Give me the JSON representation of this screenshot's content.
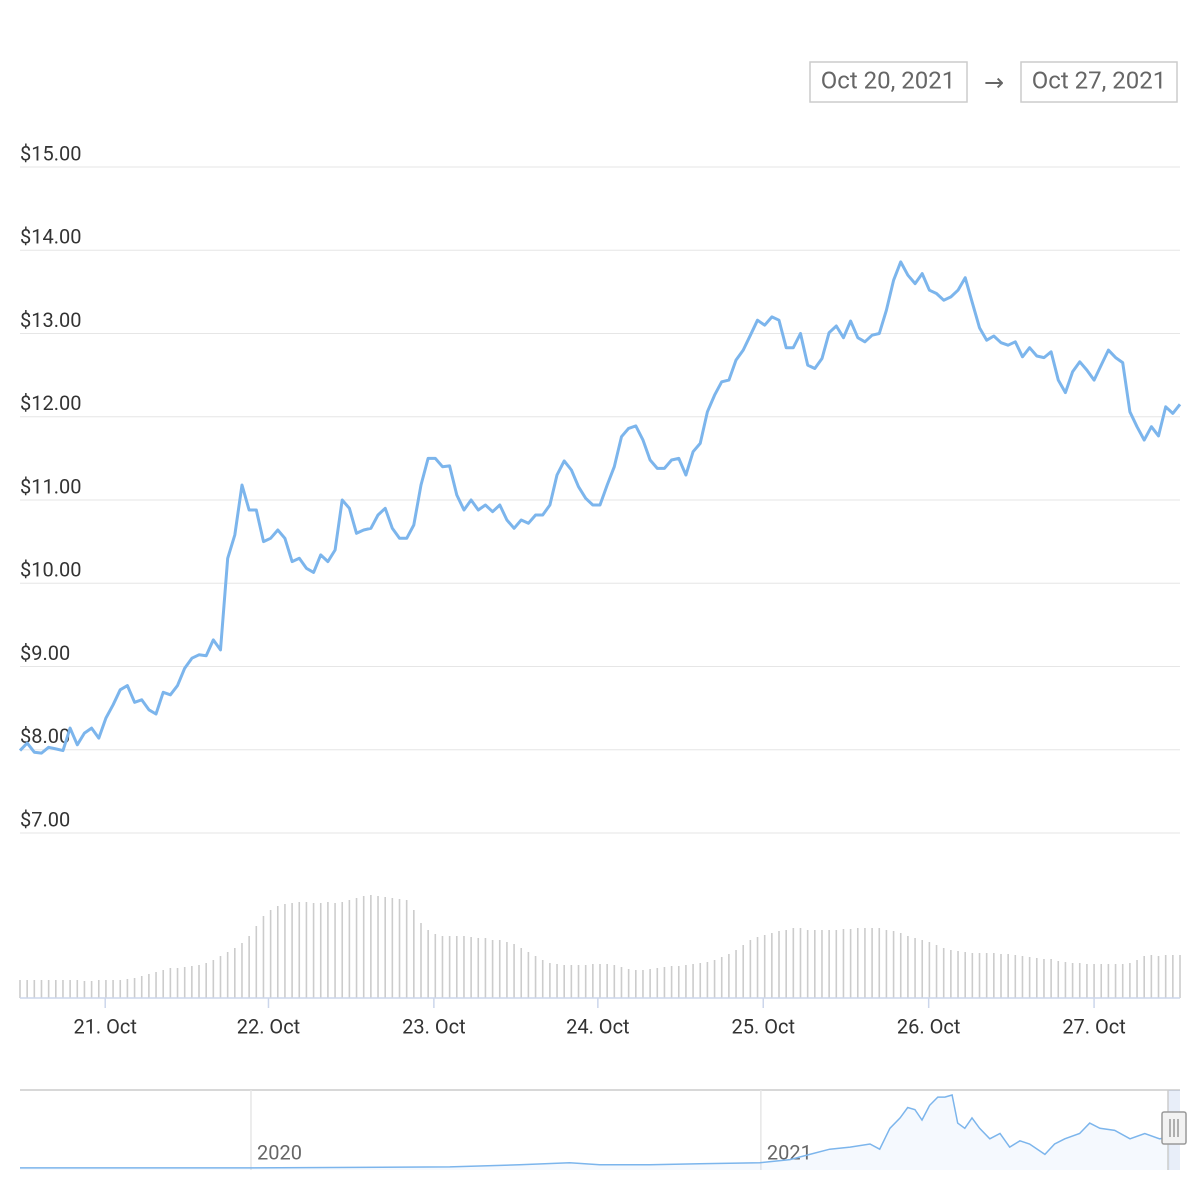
{
  "date_range": {
    "from": "Oct 20, 2021",
    "separator": "→",
    "to": "Oct 27, 2021"
  },
  "chart_data": [
    {
      "type": "line",
      "color": "#7cb5ec",
      "grid": true,
      "xlim": [
        0,
        162
      ],
      "xticks": [
        {
          "value": 11.9,
          "label": "21. Oct"
        },
        {
          "value": 34.7,
          "label": "22. Oct"
        },
        {
          "value": 57.8,
          "label": "23. Oct"
        },
        {
          "value": 80.7,
          "label": "24. Oct"
        },
        {
          "value": 103.8,
          "label": "25. Oct"
        },
        {
          "value": 126.9,
          "label": "26. Oct"
        },
        {
          "value": 150.0,
          "label": "27. Oct"
        }
      ],
      "ylim": [
        7,
        15
      ],
      "yticks": [
        {
          "value": 7,
          "label": "$7.00"
        },
        {
          "value": 8,
          "label": "$8.00"
        },
        {
          "value": 9,
          "label": "$9.00"
        },
        {
          "value": 10,
          "label": "$10.00"
        },
        {
          "value": 11,
          "label": "$11.00"
        },
        {
          "value": 12,
          "label": "$12.00"
        },
        {
          "value": 13,
          "label": "$13.00"
        },
        {
          "value": 14,
          "label": "$14.00"
        },
        {
          "value": 15,
          "label": "$15.00"
        }
      ],
      "values": [
        7.99,
        8.08,
        7.97,
        7.96,
        8.03,
        8.01,
        7.99,
        8.26,
        8.06,
        8.2,
        8.26,
        8.14,
        8.38,
        8.54,
        8.72,
        8.77,
        8.57,
        8.6,
        8.48,
        8.43,
        8.69,
        8.66,
        8.77,
        8.98,
        9.1,
        9.14,
        9.13,
        9.32,
        9.2,
        10.3,
        10.58,
        11.18,
        10.88,
        10.88,
        10.5,
        10.54,
        10.64,
        10.54,
        10.26,
        10.3,
        10.18,
        10.13,
        10.34,
        10.26,
        10.4,
        11.0,
        10.9,
        10.6,
        10.64,
        10.66,
        10.82,
        10.9,
        10.66,
        10.54,
        10.54,
        10.7,
        11.18,
        11.5,
        11.5,
        11.4,
        11.41,
        11.06,
        10.88,
        11.0,
        10.88,
        10.94,
        10.86,
        10.94,
        10.76,
        10.66,
        10.76,
        10.72,
        10.82,
        10.82,
        10.94,
        11.3,
        11.47,
        11.36,
        11.16,
        11.02,
        10.94,
        10.94,
        11.18,
        11.4,
        11.76,
        11.86,
        11.89,
        11.72,
        11.48,
        11.38,
        11.38,
        11.48,
        11.5,
        11.3,
        11.58,
        11.68,
        12.06,
        12.26,
        12.42,
        12.44,
        12.68,
        12.8,
        12.98,
        13.16,
        13.1,
        13.2,
        13.16,
        12.83,
        12.83,
        13.0,
        12.62,
        12.58,
        12.7,
        13.01,
        13.09,
        12.95,
        13.15,
        12.95,
        12.9,
        12.98,
        13.0,
        13.28,
        13.64,
        13.86,
        13.7,
        13.6,
        13.72,
        13.52,
        13.48,
        13.4,
        13.44,
        13.52,
        13.67,
        13.37,
        13.07,
        12.92,
        12.97,
        12.89,
        12.86,
        12.9,
        12.72,
        12.83,
        12.73,
        12.71,
        12.78,
        12.44,
        12.29,
        12.54,
        12.66,
        12.56,
        12.44,
        12.62,
        12.8,
        12.71,
        12.65,
        12.06,
        11.88,
        11.72,
        11.88,
        11.77,
        12.12,
        12.04,
        12.15
      ]
    },
    {
      "type": "bar",
      "color": "#cccccc",
      "values": [
        18,
        18,
        18,
        18,
        18,
        18,
        18,
        18,
        18,
        17,
        17,
        18,
        18,
        18,
        18,
        19,
        20,
        22,
        24,
        26,
        28,
        30,
        30,
        31,
        32,
        33,
        35,
        38,
        42,
        46,
        50,
        55,
        62,
        72,
        82,
        88,
        92,
        94,
        95,
        96,
        96,
        95,
        95,
        96,
        95,
        96,
        98,
        100,
        102,
        103,
        102,
        101,
        100,
        99,
        98,
        88,
        75,
        68,
        64,
        62,
        62,
        62,
        62,
        61,
        60,
        60,
        58,
        58,
        56,
        54,
        50,
        46,
        42,
        38,
        35,
        34,
        33,
        33,
        33,
        33,
        34,
        34,
        34,
        33,
        31,
        29,
        28,
        28,
        29,
        30,
        31,
        32,
        32,
        33,
        34,
        35,
        36,
        38,
        41,
        44,
        48,
        53,
        58,
        61,
        63,
        65,
        67,
        68,
        70,
        70,
        68,
        68,
        68,
        68,
        68,
        69,
        69,
        70,
        70,
        70,
        70,
        68,
        67,
        65,
        62,
        60,
        58,
        56,
        53,
        50,
        48,
        47,
        46,
        45,
        45,
        45,
        45,
        44,
        44,
        43,
        42,
        41,
        40,
        39,
        39,
        37,
        36,
        35,
        35,
        34,
        34,
        34,
        34,
        34,
        34,
        35,
        38,
        42,
        43,
        42,
        43,
        43,
        43
      ]
    },
    {
      "type": "area",
      "color": "#7cb5ec",
      "xlim": [
        2019.547,
        2021.822
      ],
      "xticks": [
        2020,
        2021
      ],
      "x": [
        2019.547,
        2019.998,
        2020.39,
        2020.527,
        2020.625,
        2020.684,
        2020.782,
        2020.88,
        2020.998,
        2021.057,
        2021.096,
        2021.135,
        2021.175,
        2021.214,
        2021.233,
        2021.253,
        2021.273,
        2021.288,
        2021.302,
        2021.316,
        2021.331,
        2021.347,
        2021.361,
        2021.375,
        2021.386,
        2021.4,
        2021.414,
        2021.429,
        2021.449,
        2021.469,
        2021.488,
        2021.508,
        2021.527,
        2021.557,
        2021.576,
        2021.596,
        2021.625,
        2021.645,
        2021.665,
        2021.694,
        2021.724,
        2021.753,
        2021.782,
        2021.802
      ],
      "values": [
        2,
        2,
        3,
        5,
        7,
        5,
        5,
        6,
        7,
        10,
        15,
        20,
        22,
        25,
        20,
        40,
        50,
        60,
        58,
        48,
        62,
        70,
        70,
        72,
        45,
        40,
        50,
        40,
        30,
        35,
        22,
        28,
        25,
        15,
        25,
        30,
        35,
        45,
        40,
        38,
        30,
        35,
        30,
        32
      ]
    }
  ]
}
